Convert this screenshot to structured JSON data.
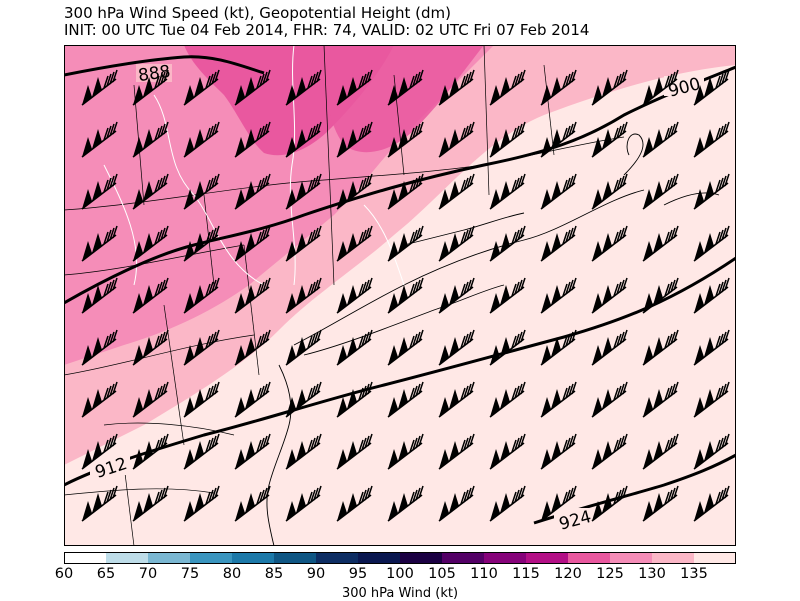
{
  "title": "300 hPa Wind Speed (kt), Geopotential Height (dm)",
  "subtitle": "INIT: 00 UTC Tue 04 Feb 2014, FHR: 74, VALID: 02 UTC Fri 07 Feb 2014",
  "colorbar": {
    "label": "300 hPa Wind (kt)",
    "ticks": [
      "60",
      "65",
      "70",
      "75",
      "80",
      "85",
      "90",
      "95",
      "100",
      "105",
      "110",
      "115",
      "120",
      "125",
      "130",
      "135"
    ],
    "colors": [
      "#ffffff",
      "#bedde9",
      "#7ab7d2",
      "#3a95bf",
      "#1c79a9",
      "#0f5684",
      "#0d2d63",
      "#0a1750",
      "#1b0043",
      "#530066",
      "#86027a",
      "#b30f86",
      "#e9589f",
      "#f58db8",
      "#fbb7c7",
      "#ffe8e6"
    ]
  },
  "contours": [
    {
      "label": "888",
      "value": 888
    },
    {
      "label": "900",
      "value": 900
    },
    {
      "label": "912",
      "value": 912
    },
    {
      "label": "924",
      "value": 924
    }
  ],
  "colors": {
    "band_125": "#f58db8",
    "band_130": "#fbb7c7",
    "band_135": "#ffe8e6",
    "band_120": "#e9589f",
    "contour": "#000000",
    "border": "#000000",
    "rivers": "#ffffff"
  }
}
